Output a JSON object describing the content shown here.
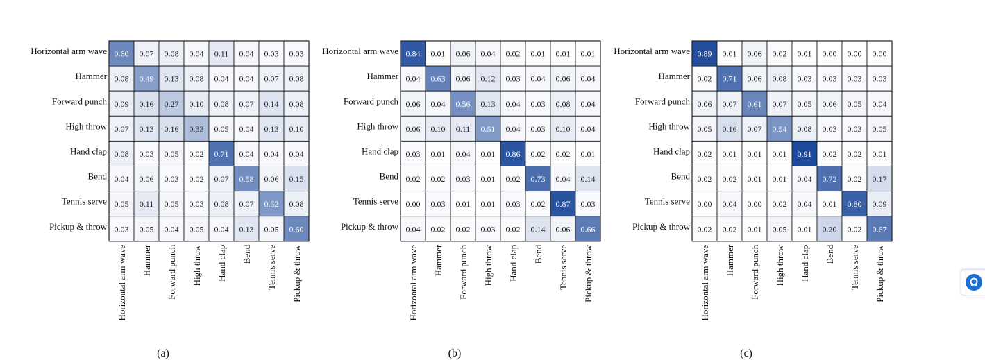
{
  "chart_data": [
    {
      "type": "heatmap",
      "title": "(a)",
      "row_labels": [
        "Horizontal arm wave",
        "Hammer",
        "Forward punch",
        "High throw",
        "Hand clap",
        "Bend",
        "Tennis serve",
        "Pickup & throw"
      ],
      "col_labels": [
        "Horizontal arm wave",
        "Hammer",
        "Forward punch",
        "High throw",
        "Hand clap",
        "Bend",
        "Tennis serve",
        "Pickup & throw"
      ],
      "values": [
        [
          0.6,
          0.07,
          0.08,
          0.04,
          0.11,
          0.04,
          0.03,
          0.03
        ],
        [
          0.08,
          0.49,
          0.13,
          0.08,
          0.04,
          0.04,
          0.07,
          0.08
        ],
        [
          0.09,
          0.16,
          0.27,
          0.1,
          0.08,
          0.07,
          0.14,
          0.08
        ],
        [
          0.07,
          0.13,
          0.16,
          0.33,
          0.05,
          0.04,
          0.13,
          0.1
        ],
        [
          0.08,
          0.03,
          0.05,
          0.02,
          0.71,
          0.04,
          0.04,
          0.04
        ],
        [
          0.04,
          0.06,
          0.03,
          0.02,
          0.07,
          0.58,
          0.06,
          0.15
        ],
        [
          0.05,
          0.11,
          0.05,
          0.03,
          0.08,
          0.07,
          0.52,
          0.08
        ],
        [
          0.03,
          0.05,
          0.04,
          0.05,
          0.04,
          0.13,
          0.05,
          0.6
        ]
      ]
    },
    {
      "type": "heatmap",
      "title": "(b)",
      "row_labels": [
        "Horizontal arm wave",
        "Hammer",
        "Forward punch",
        "High throw",
        "Hand clap",
        "Bend",
        "Tennis serve",
        "Pickup & throw"
      ],
      "col_labels": [
        "Horizontal arm wave",
        "Hammer",
        "Forward punch",
        "High throw",
        "Hand clap",
        "Bend",
        "Tennis serve",
        "Pickup & throw"
      ],
      "values": [
        [
          0.84,
          0.01,
          0.06,
          0.04,
          0.02,
          0.01,
          0.01,
          0.01
        ],
        [
          0.04,
          0.63,
          0.06,
          0.12,
          0.03,
          0.04,
          0.06,
          0.04
        ],
        [
          0.06,
          0.04,
          0.56,
          0.13,
          0.04,
          0.03,
          0.08,
          0.04
        ],
        [
          0.06,
          0.1,
          0.11,
          0.51,
          0.04,
          0.03,
          0.1,
          0.04
        ],
        [
          0.03,
          0.01,
          0.04,
          0.01,
          0.86,
          0.02,
          0.02,
          0.01
        ],
        [
          0.02,
          0.02,
          0.03,
          0.01,
          0.02,
          0.73,
          0.04,
          0.14
        ],
        [
          0.0,
          0.03,
          0.01,
          0.01,
          0.03,
          0.02,
          0.87,
          0.03
        ],
        [
          0.04,
          0.02,
          0.02,
          0.03,
          0.02,
          0.14,
          0.06,
          0.66
        ]
      ]
    },
    {
      "type": "heatmap",
      "title": "(c)",
      "row_labels": [
        "Horizontal arm wave",
        "Hammer",
        "Forward punch",
        "High throw",
        "Hand clap",
        "Bend",
        "Tennis serve",
        "Pickup & throw"
      ],
      "col_labels": [
        "Horizontal arm wave",
        "Hammer",
        "Forward punch",
        "High throw",
        "Hand clap",
        "Bend",
        "Tennis serve",
        "Pickup & throw"
      ],
      "values": [
        [
          0.89,
          0.01,
          0.06,
          0.02,
          0.01,
          0.0,
          0.0,
          0.0
        ],
        [
          0.02,
          0.71,
          0.06,
          0.08,
          0.03,
          0.03,
          0.03,
          0.03
        ],
        [
          0.06,
          0.07,
          0.61,
          0.07,
          0.05,
          0.06,
          0.05,
          0.04
        ],
        [
          0.05,
          0.16,
          0.07,
          0.54,
          0.08,
          0.03,
          0.03,
          0.05
        ],
        [
          0.02,
          0.01,
          0.01,
          0.01,
          0.91,
          0.02,
          0.02,
          0.01
        ],
        [
          0.02,
          0.02,
          0.01,
          0.01,
          0.04,
          0.72,
          0.02,
          0.17
        ],
        [
          0.0,
          0.04,
          0.0,
          0.02,
          0.04,
          0.01,
          0.8,
          0.09
        ],
        [
          0.02,
          0.02,
          0.01,
          0.05,
          0.01,
          0.2,
          0.02,
          0.67
        ]
      ]
    }
  ],
  "colors": {
    "low": "#ffffff",
    "high": "#1d4899",
    "grid": "#222222"
  },
  "side_widget": {
    "icon": "chat-support-icon"
  }
}
